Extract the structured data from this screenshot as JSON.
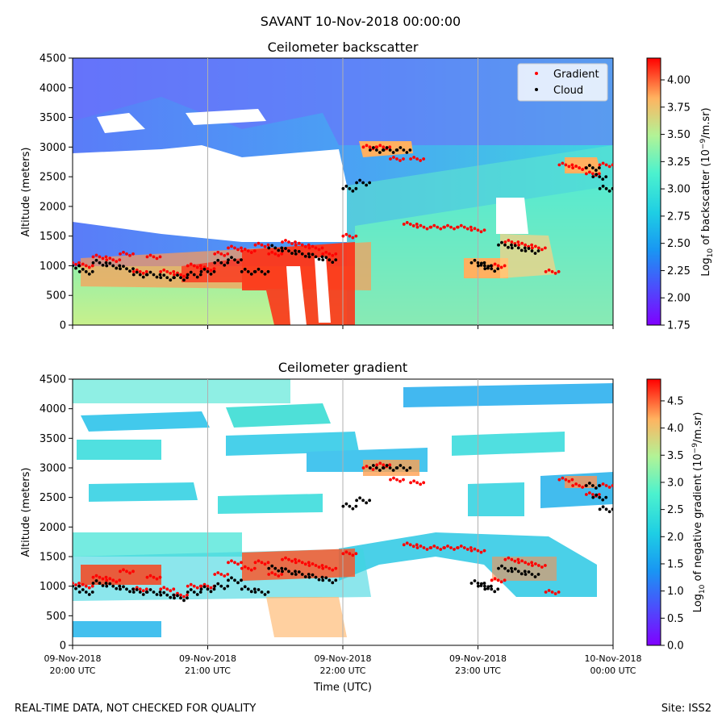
{
  "figure": {
    "suptitle": "SAVANT 10-Nov-2018 00:00:00",
    "footer_left": "REAL-TIME DATA, NOT CHECKED FOR QUALITY",
    "footer_right": "Site: ISS2",
    "xlabel": "Time (UTC)"
  },
  "chart_data": [
    {
      "type": "heatmap",
      "title": "Ceilometer backscatter",
      "ylabel": "Altitude (meters)",
      "ylim": [
        0,
        4500
      ],
      "yticks": [
        0,
        500,
        1000,
        1500,
        2000,
        2500,
        3000,
        3500,
        4000,
        4500
      ],
      "xlim": [
        "2018-11-09T20:00",
        "2018-11-10T00:00"
      ],
      "colorbar": {
        "label": "Log10 of backscatter (10^-9/m.sr)",
        "label_main": "Log",
        "label_sub": "10",
        "label_mid": " of backscatter (10",
        "label_sup": "−9",
        "label_end": "/m.sr)",
        "range": [
          1.75,
          4.2
        ],
        "ticks": [
          "1.75",
          "2.00",
          "2.25",
          "2.50",
          "2.75",
          "3.00",
          "3.25",
          "3.50",
          "3.75",
          "4.00"
        ],
        "colormap": "rainbow"
      },
      "legend": {
        "placement": "top-right",
        "entries": [
          {
            "label": "Gradient",
            "color": "#ff0000"
          },
          {
            "label": "Cloud",
            "color": "#000000"
          }
        ]
      },
      "series": [
        {
          "name": "Gradient",
          "color": "#ff0000",
          "x_hours": [
            20.0,
            20.1,
            20.2,
            20.3,
            20.4,
            20.5,
            20.6,
            20.7,
            20.8,
            20.9,
            21.0,
            21.1,
            21.2,
            21.3,
            21.4,
            21.5,
            21.6,
            21.7,
            21.8,
            21.9,
            22.05,
            22.2,
            22.3,
            22.4,
            22.5,
            22.55,
            22.6,
            22.7,
            22.8,
            22.9,
            23.0,
            23.15,
            23.25,
            23.35,
            23.45,
            23.55,
            23.65,
            23.75,
            23.85,
            23.95
          ],
          "y": [
            1050,
            1000,
            1150,
            1100,
            1200,
            900,
            1150,
            900,
            850,
            1000,
            950,
            1200,
            1300,
            1250,
            1350,
            1200,
            1400,
            1350,
            1300,
            1200,
            1500,
            3000,
            3000,
            2800,
            1700,
            2800,
            1650,
            1650,
            1650,
            1650,
            1600,
            1000,
            1400,
            1350,
            1300,
            900,
            2700,
            2650,
            2550,
            2700
          ]
        },
        {
          "name": "Cloud",
          "color": "#000000",
          "x_hours": [
            20.0,
            20.1,
            20.2,
            20.3,
            20.4,
            20.5,
            20.6,
            20.7,
            20.8,
            20.9,
            21.0,
            21.1,
            21.2,
            21.3,
            21.4,
            21.5,
            21.6,
            21.7,
            21.8,
            21.9,
            22.05,
            22.15,
            22.25,
            22.35,
            22.45,
            23.0,
            23.05,
            23.1,
            23.2,
            23.3,
            23.4,
            23.85,
            23.9,
            23.95
          ],
          "y": [
            1000,
            900,
            1050,
            1000,
            950,
            850,
            850,
            800,
            800,
            850,
            900,
            1050,
            1100,
            900,
            900,
            1300,
            1250,
            1200,
            1150,
            1100,
            2300,
            2400,
            2950,
            2950,
            2950,
            1050,
            1000,
            950,
            1350,
            1300,
            1250,
            2650,
            2500,
            2300
          ]
        }
      ]
    },
    {
      "type": "heatmap",
      "title": "Ceilometer gradient",
      "ylabel": "Altitude (meters)",
      "ylim": [
        0,
        4500
      ],
      "yticks": [
        0,
        500,
        1000,
        1500,
        2000,
        2500,
        3000,
        3500,
        4000,
        4500
      ],
      "xlim": [
        "2018-11-09T20:00",
        "2018-11-10T00:00"
      ],
      "xticks": [
        {
          "date": "09-Nov-2018",
          "time": "20:00 UTC"
        },
        {
          "date": "09-Nov-2018",
          "time": "21:00 UTC"
        },
        {
          "date": "09-Nov-2018",
          "time": "22:00 UTC"
        },
        {
          "date": "09-Nov-2018",
          "time": "23:00 UTC"
        },
        {
          "date": "10-Nov-2018",
          "time": "00:00 UTC"
        }
      ],
      "colorbar": {
        "label": "Log10 of negative gradient (10^-9/m.sr)",
        "label_main": "Log",
        "label_sub": "10",
        "label_mid": " of negative gradient (10",
        "label_sup": "−9",
        "label_end": "/m.sr)",
        "range": [
          0.0,
          4.9
        ],
        "ticks": [
          "0.0",
          "0.5",
          "1.0",
          "1.5",
          "2.0",
          "2.5",
          "3.0",
          "3.5",
          "4.0",
          "4.5"
        ],
        "colormap": "rainbow"
      },
      "series": [
        {
          "name": "Gradient",
          "color": "#ff0000",
          "x_hours": [
            20.0,
            20.1,
            20.2,
            20.3,
            20.4,
            20.5,
            20.6,
            20.7,
            20.8,
            20.9,
            21.0,
            21.1,
            21.2,
            21.3,
            21.4,
            21.5,
            21.6,
            21.7,
            21.8,
            21.9,
            22.05,
            22.2,
            22.3,
            22.4,
            22.5,
            22.55,
            22.6,
            22.7,
            22.8,
            22.9,
            23.0,
            23.15,
            23.25,
            23.35,
            23.45,
            23.55,
            23.65,
            23.75,
            23.85,
            23.95
          ],
          "y": [
            1050,
            1000,
            1150,
            1100,
            1250,
            950,
            1150,
            950,
            850,
            1000,
            1000,
            1200,
            1400,
            1300,
            1400,
            1200,
            1450,
            1400,
            1350,
            1300,
            1550,
            3000,
            3050,
            2800,
            1700,
            2750,
            1650,
            1650,
            1650,
            1650,
            1600,
            1100,
            1450,
            1400,
            1350,
            900,
            2800,
            2700,
            2550,
            2700
          ]
        },
        {
          "name": "Cloud",
          "color": "#000000",
          "x_hours": [
            20.0,
            20.1,
            20.2,
            20.3,
            20.4,
            20.5,
            20.6,
            20.7,
            20.8,
            20.9,
            21.0,
            21.1,
            21.2,
            21.3,
            21.4,
            21.5,
            21.6,
            21.7,
            21.8,
            21.9,
            22.05,
            22.15,
            22.25,
            22.35,
            22.45,
            23.0,
            23.05,
            23.1,
            23.2,
            23.3,
            23.4,
            23.85,
            23.9,
            23.95
          ],
          "y": [
            1000,
            900,
            1050,
            1000,
            950,
            900,
            900,
            850,
            800,
            900,
            950,
            1000,
            1100,
            950,
            900,
            1300,
            1250,
            1200,
            1150,
            1100,
            2350,
            2450,
            3000,
            3000,
            3000,
            1050,
            1000,
            950,
            1300,
            1250,
            1200,
            2700,
            2500,
            2300
          ]
        }
      ]
    }
  ]
}
